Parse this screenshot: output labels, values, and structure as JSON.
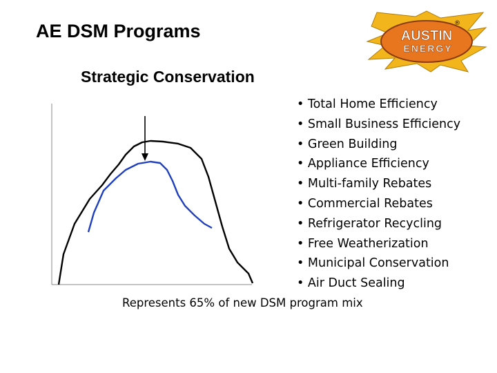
{
  "title": "AE DSM Programs",
  "subtitle": "Strategic Conservation",
  "logo": {
    "line1": "AUSTIN",
    "line2": "ENERGY",
    "registered_mark": "®",
    "colors": {
      "bolt": "#f2b51c",
      "oval": "#e8761e",
      "text": "#ffffff",
      "outline": "#8a3b12"
    }
  },
  "programs": [
    "• Total Home Efficiency",
    "• Small Business Efficiency",
    "• Green Building",
    "• Appliance Efficiency",
    "• Multi-family Rebates",
    "• Commercial Rebates",
    "• Refrigerator Recycling",
    "• Free Weatherization",
    "• Municipal Conservation",
    "• Air Duct Sealing"
  ],
  "caption": "Represents 65% of new DSM program mix",
  "diagram": {
    "curves": [
      {
        "color": "#000000"
      },
      {
        "color": "#1f3fbf"
      }
    ]
  }
}
